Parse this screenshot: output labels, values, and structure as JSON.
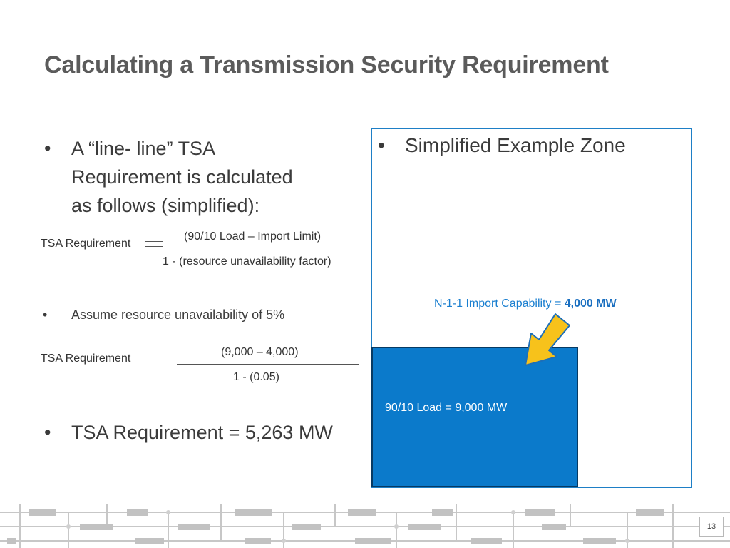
{
  "slide": {
    "title": "Calculating a Transmission Security Requirement",
    "page_number": "13"
  },
  "left": {
    "bullet1_line1": "A “line- line” TSA",
    "bullet1_line2": "Requirement is calculated",
    "bullet1_line3": "as follows (simplified):",
    "formula1": {
      "lhs": "TSA  Requirement",
      "numerator": "(90/10 Load – Import Limit)",
      "denominator": "1 - (resource unavailability factor)"
    },
    "bullet2": "Assume resource unavailability of 5%",
    "formula2": {
      "lhs": "TSA  Requirement",
      "numerator": "(9,000 – 4,000)",
      "denominator": "1 - (0.05)"
    },
    "bullet3": "TSA Requirement = 5,263 MW"
  },
  "right": {
    "bullet": "Simplified Example Zone",
    "import_label": "N-1-1 Import Capability = ",
    "import_value": "4,000 MW",
    "load_label": "90/10 Load = 9,000 MW"
  },
  "colors": {
    "zone_border": "#1e7fc6",
    "load_fill": "#0b7acb",
    "arrow_fill": "#f7c21b",
    "import_text": "#1a7fd0"
  },
  "bullet_glyph": "•"
}
